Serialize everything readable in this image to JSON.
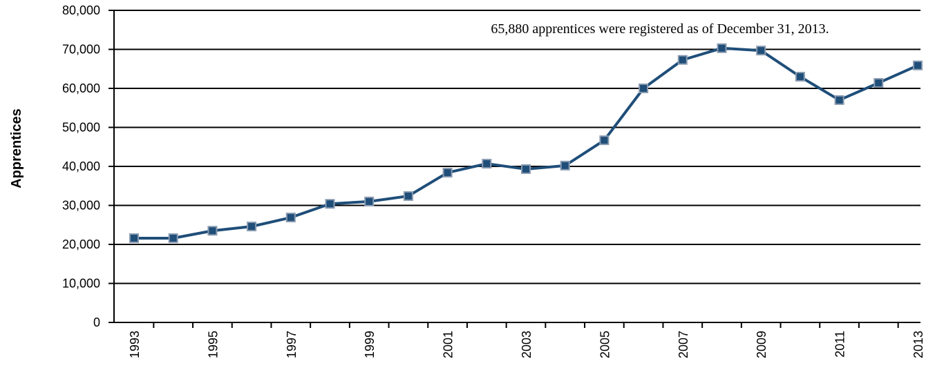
{
  "chart_data": {
    "type": "line",
    "y_label": "Apprentices",
    "annotation": "65,880 apprentices were registered as of December 31, 2013.",
    "categories": [
      "1993",
      null,
      "1995",
      null,
      "1997",
      null,
      "1999",
      null,
      "2001",
      null,
      "2003",
      null,
      "2005",
      null,
      "2007",
      null,
      "2009",
      null,
      "2011",
      null,
      "2013"
    ],
    "series": [
      {
        "name": "Apprentices",
        "color": "#1f4e79",
        "values": [
          21600,
          21600,
          23500,
          24600,
          26900,
          30400,
          31000,
          32400,
          38400,
          40700,
          39300,
          40200,
          46700,
          60000,
          67300,
          70300,
          69700,
          63000,
          57000,
          61400,
          65880
        ]
      }
    ],
    "ylim": [
      0,
      80000
    ],
    "yticks": [
      0,
      {
        "value": 10000,
        "label": "10,000"
      },
      {
        "value": 20000,
        "label": "20,000"
      },
      {
        "value": 30000,
        "label": "30,000"
      },
      {
        "value": 40000,
        "label": "40,000"
      },
      {
        "value": 50000,
        "label": "50,000"
      },
      {
        "value": 60000,
        "label": "60,000"
      },
      {
        "value": 70000,
        "label": "70,000"
      },
      {
        "value": 80000,
        "label": "80,000"
      }
    ],
    "grid": true
  }
}
